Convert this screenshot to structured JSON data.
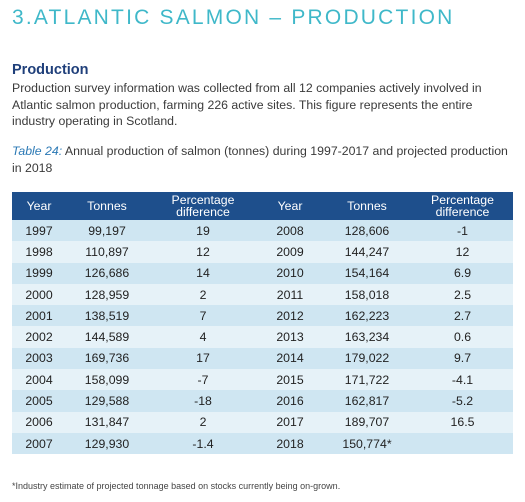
{
  "section_title": "3.ATLANTIC SALMON – PRODUCTION",
  "sub_heading": "Production",
  "intro": "Production survey information was collected from all 12 companies actively involved in Atlantic salmon production, farming 226 active sites. This figure represents the entire industry operating in Scotland.",
  "caption": {
    "tag": "Table 24:",
    "text": " Annual production of salmon (tonnes) during 1997-2017 and projected production in 2018"
  },
  "table": {
    "headers": [
      "Year",
      "Tonnes",
      "Percentage difference",
      "Year",
      "Tonnes",
      "Percentage difference"
    ],
    "rows": [
      [
        "1997",
        "99,197",
        "19",
        "2008",
        "128,606",
        "-1"
      ],
      [
        "1998",
        "110,897",
        "12",
        "2009",
        "144,247",
        "12"
      ],
      [
        "1999",
        "126,686",
        "14",
        "2010",
        "154,164",
        "6.9"
      ],
      [
        "2000",
        "128,959",
        "2",
        "2011",
        "158,018",
        "2.5"
      ],
      [
        "2001",
        "138,519",
        "7",
        "2012",
        "162,223",
        "2.7"
      ],
      [
        "2002",
        "144,589",
        "4",
        "2013",
        "163,234",
        "0.6"
      ],
      [
        "2003",
        "169,736",
        "17",
        "2014",
        "179,022",
        "9.7"
      ],
      [
        "2004",
        "158,099",
        "-7",
        "2015",
        "171,722",
        "-4.1"
      ],
      [
        "2005",
        "129,588",
        "-18",
        "2016",
        "162,817",
        "-5.2"
      ],
      [
        "2006",
        "131,847",
        "2",
        "2017",
        "189,707",
        "16.5"
      ],
      [
        "2007",
        "129,930",
        "-1.4",
        "2018",
        "150,774*",
        ""
      ]
    ]
  },
  "footnote": "*Industry estimate of projected tonnage based on stocks currently being on-grown."
}
